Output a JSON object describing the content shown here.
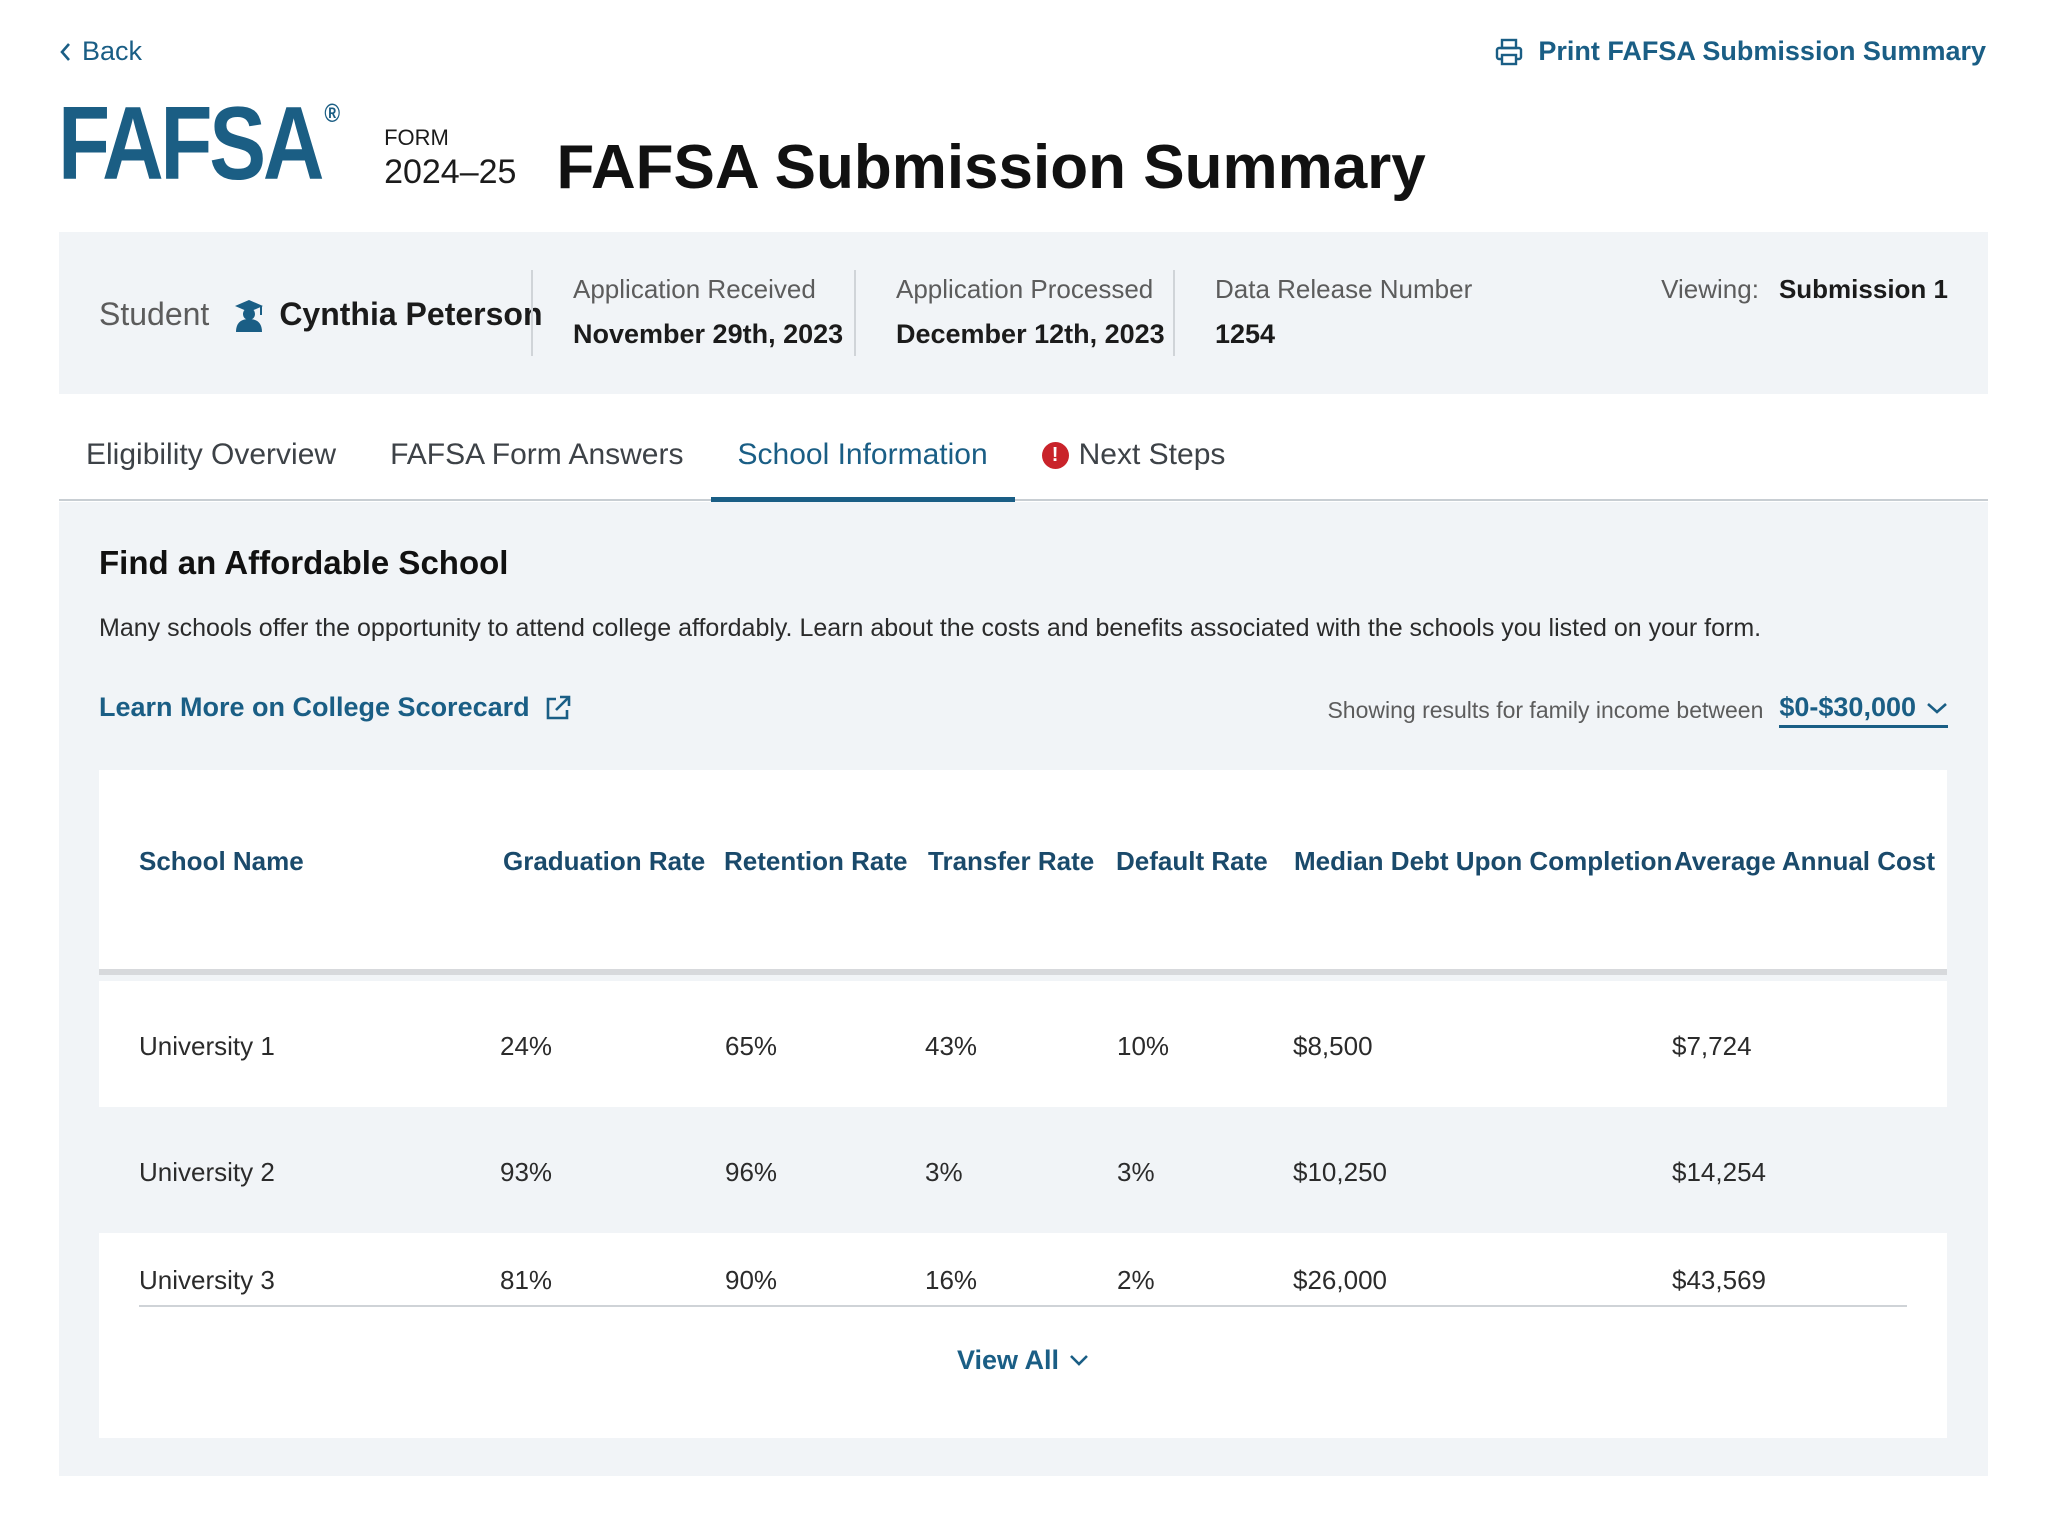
{
  "nav": {
    "back_label": "Back",
    "print_label": "Print FAFSA Submission Summary"
  },
  "header": {
    "logo_text": "FAFSA",
    "logo_registered": "®",
    "form_label": "FORM",
    "year": "2024–25",
    "title": "FAFSA Submission Summary"
  },
  "info": {
    "student_label": "Student",
    "student_name": "Cynthia Peterson",
    "received_label": "Application Received",
    "received_value": "November 29th, 2023",
    "processed_label": "Application Processed",
    "processed_value": "December 12th, 2023",
    "drn_label": "Data Release Number",
    "drn_value": "1254",
    "viewing_label": "Viewing:",
    "viewing_value": "Submission 1"
  },
  "tabs": [
    {
      "label": "Eligibility Overview"
    },
    {
      "label": "FAFSA Form Answers"
    },
    {
      "label": "School Information"
    },
    {
      "label": "Next Steps"
    }
  ],
  "section": {
    "title": "Find an Affordable School",
    "description": "Many schools offer the opportunity to attend college affordably. Learn about the costs and benefits associated with the schools you listed on your form.",
    "scorecard_link": "Learn More on College Scorecard",
    "income_label": "Showing results for family income between",
    "income_value": "$0-$30,000"
  },
  "table": {
    "headers": [
      "School Name",
      "Graduation Rate",
      "Retention Rate",
      "Transfer Rate",
      "Default Rate",
      "Median Debt Upon Completion",
      "Average Annual Cost"
    ],
    "rows": [
      [
        "University 1",
        "24%",
        "65%",
        "43%",
        "10%",
        "$8,500",
        "$7,724"
      ],
      [
        "University 2",
        "93%",
        "96%",
        "3%",
        "3%",
        "$10,250",
        "$14,254"
      ],
      [
        "University 3",
        "81%",
        "90%",
        "16%",
        "2%",
        "$26,000",
        "$43,569"
      ]
    ],
    "view_all_label": "View All"
  },
  "colors": {
    "brand_blue": "#1a5e85",
    "panel_bg": "#f1f4f7",
    "alert_red": "#c9232a"
  }
}
